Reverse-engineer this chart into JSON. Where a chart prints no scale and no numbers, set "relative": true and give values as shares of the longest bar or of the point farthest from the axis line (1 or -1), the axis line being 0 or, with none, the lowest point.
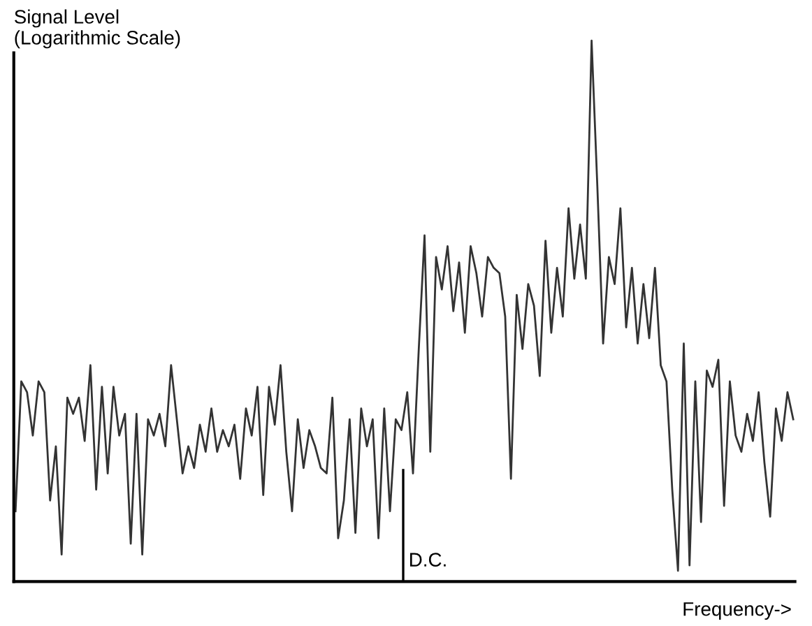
{
  "chart_data": {
    "type": "line",
    "relative": true,
    "ylabel": "Signal Level\n(Logarithmic Scale)",
    "xlabel": "Frequency->",
    "categories": [
      null,
      null,
      null,
      null,
      null,
      null,
      null,
      null,
      null,
      null,
      null,
      null,
      null,
      null,
      null,
      null,
      null,
      null,
      null,
      null,
      null,
      null,
      null,
      null,
      null,
      null,
      null,
      null,
      null,
      null,
      null,
      null,
      null,
      null,
      null,
      null,
      null,
      null,
      null,
      null,
      null,
      null,
      null,
      null,
      null,
      null,
      null,
      null,
      null,
      null,
      null,
      null,
      null,
      null,
      null,
      null,
      null,
      null,
      null,
      null,
      null,
      null,
      null,
      null,
      null,
      null,
      null,
      null,
      null,
      null,
      null,
      null,
      null,
      null,
      null,
      null,
      null,
      null,
      null,
      null,
      null,
      null,
      null,
      null,
      null,
      null,
      null,
      null,
      null,
      null,
      null,
      null,
      null,
      null,
      null,
      null,
      null,
      null,
      null,
      null,
      null,
      null,
      null,
      null,
      null,
      null,
      null,
      null,
      null,
      null,
      null,
      null,
      null,
      null,
      null,
      null,
      null,
      null,
      null,
      null,
      null,
      null,
      null,
      null,
      null,
      null,
      null,
      null,
      null,
      null,
      null,
      null,
      null,
      null,
      null,
      null
    ],
    "series": [
      {
        "color": "#333333",
        "values": [
          0.13,
          0.37,
          0.35,
          0.27,
          0.37,
          0.35,
          0.15,
          0.25,
          0.05,
          0.34,
          0.31,
          0.34,
          0.26,
          0.4,
          0.17,
          0.36,
          0.2,
          0.36,
          0.27,
          0.31,
          0.07,
          0.31,
          0.05,
          0.3,
          0.27,
          0.31,
          0.25,
          0.4,
          0.3,
          0.2,
          0.25,
          0.21,
          0.29,
          0.24,
          0.32,
          0.24,
          0.28,
          0.25,
          0.29,
          0.19,
          0.32,
          0.27,
          0.36,
          0.16,
          0.36,
          0.29,
          0.4,
          0.24,
          0.13,
          0.3,
          0.21,
          0.28,
          0.25,
          0.21,
          0.2,
          0.34,
          0.08,
          0.15,
          0.3,
          0.09,
          0.32,
          0.25,
          0.3,
          0.08,
          0.32,
          0.13,
          0.3,
          0.28,
          0.35,
          0.2,
          0.43,
          0.64,
          0.24,
          0.6,
          0.54,
          0.62,
          0.5,
          0.59,
          0.46,
          0.62,
          0.57,
          0.49,
          0.6,
          0.58,
          0.57,
          0.49,
          0.19,
          0.53,
          0.43,
          0.55,
          0.51,
          0.38,
          0.63,
          0.46,
          0.58,
          0.49,
          0.69,
          0.56,
          0.66,
          0.56,
          1.0,
          0.73,
          0.44,
          0.6,
          0.55,
          0.69,
          0.47,
          0.58,
          0.44,
          0.55,
          0.45,
          0.58,
          0.4,
          0.37,
          0.17,
          0.02,
          0.44,
          0.03,
          0.37,
          0.11,
          0.39,
          0.36,
          0.41,
          0.14,
          0.37,
          0.27,
          0.24,
          0.31,
          0.26,
          0.35,
          0.22,
          0.12,
          0.32,
          0.26,
          0.35,
          0.3
        ]
      }
    ],
    "annotations": [
      "D.C."
    ]
  }
}
